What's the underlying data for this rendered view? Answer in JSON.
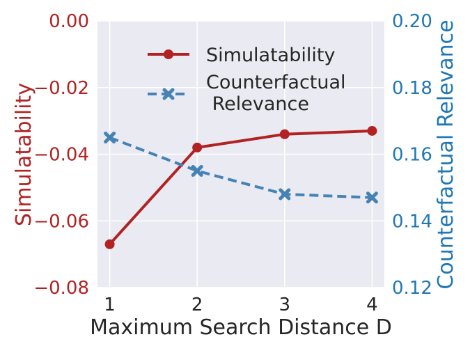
{
  "chart_data": {
    "type": "line",
    "xlabel": "Maximum Search Distance D",
    "x": [
      1,
      2,
      3,
      4
    ],
    "xticks": [
      "1",
      "2",
      "3",
      "4"
    ],
    "y_left": {
      "label": "Simulatability",
      "color": "#b22222",
      "ylim": [
        -0.08,
        0.0
      ],
      "ticks": [
        "0.00",
        "−0.02",
        "−0.04",
        "−0.06",
        "−0.08"
      ],
      "tick_values": [
        0.0,
        -0.02,
        -0.04,
        -0.06,
        -0.08
      ]
    },
    "y_right": {
      "label": "Counterfactual Relevance",
      "color": "#1f77b4",
      "ylim": [
        0.12,
        0.2
      ],
      "ticks": [
        "0.20",
        "0.18",
        "0.16",
        "0.14",
        "0.12"
      ],
      "tick_values": [
        0.2,
        0.18,
        0.16,
        0.14,
        0.12
      ]
    },
    "series": [
      {
        "name": "Simulatability",
        "axis": "left",
        "values": [
          -0.067,
          -0.038,
          -0.034,
          -0.033
        ],
        "color": "#b22222",
        "style": "solid",
        "marker": "circle"
      },
      {
        "name": "Counterfactual Relevance",
        "legend_lines": [
          "Counterfactual",
          " Relevance"
        ],
        "axis": "right",
        "values": [
          0.165,
          0.155,
          0.148,
          0.147
        ],
        "color": "#4682b4",
        "style": "dashed",
        "marker": "x"
      }
    ],
    "grid": true,
    "legend": "top-center"
  }
}
